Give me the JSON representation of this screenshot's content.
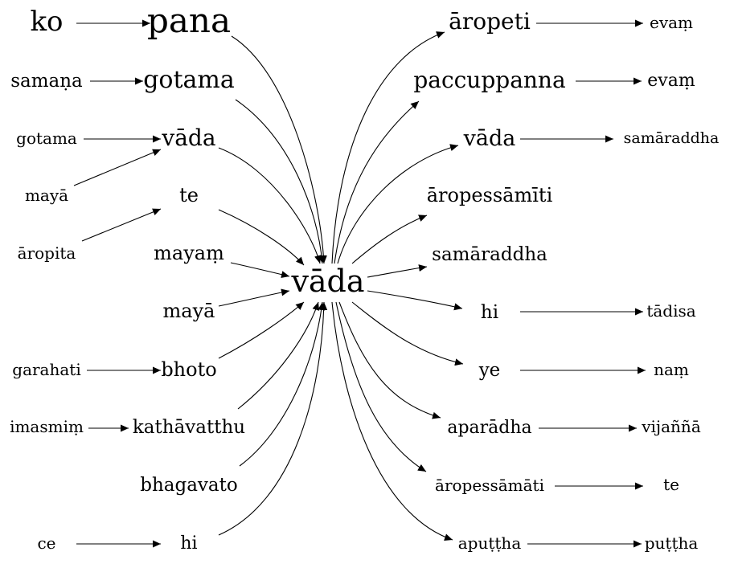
{
  "diagram": {
    "center": {
      "id": "c",
      "label": "vāda"
    },
    "nodes": [
      {
        "id": "ko",
        "label": "ko"
      },
      {
        "id": "pana",
        "label": "pana"
      },
      {
        "id": "samana",
        "label": "samaṇa"
      },
      {
        "id": "gotama1",
        "label": "gotama"
      },
      {
        "id": "gotama2",
        "label": "gotama"
      },
      {
        "id": "vada_l",
        "label": "vāda"
      },
      {
        "id": "maya1",
        "label": "mayā"
      },
      {
        "id": "te_l",
        "label": "te"
      },
      {
        "id": "aropita",
        "label": "āropita"
      },
      {
        "id": "mayam",
        "label": "mayaṃ"
      },
      {
        "id": "maya2",
        "label": "mayā"
      },
      {
        "id": "garahati",
        "label": "garahati"
      },
      {
        "id": "bhoto",
        "label": "bhoto"
      },
      {
        "id": "imasmim",
        "label": "imasmiṃ"
      },
      {
        "id": "kathavatthu",
        "label": "kathāvatthu"
      },
      {
        "id": "bhagavato",
        "label": "bhagavato"
      },
      {
        "id": "ce",
        "label": "ce"
      },
      {
        "id": "hi_l",
        "label": "hi"
      },
      {
        "id": "aropeti",
        "label": "āropeti"
      },
      {
        "id": "evam1",
        "label": "evaṃ"
      },
      {
        "id": "paccuppanna",
        "label": "paccuppanna"
      },
      {
        "id": "evam2",
        "label": "evaṃ"
      },
      {
        "id": "vada_r",
        "label": "vāda"
      },
      {
        "id": "samaraddha1",
        "label": "samāraddha"
      },
      {
        "id": "aropessamiti",
        "label": "āropessāmīti"
      },
      {
        "id": "samaraddha2",
        "label": "samāraddha"
      },
      {
        "id": "hi_r",
        "label": "hi"
      },
      {
        "id": "tadisa",
        "label": "tādisa"
      },
      {
        "id": "ye",
        "label": "ye"
      },
      {
        "id": "nam",
        "label": "naṃ"
      },
      {
        "id": "aparadha",
        "label": "aparādha"
      },
      {
        "id": "vijanna",
        "label": "vijaññā"
      },
      {
        "id": "aropessamati",
        "label": "āropessāmāti"
      },
      {
        "id": "te_r",
        "label": "te"
      },
      {
        "id": "aputtha",
        "label": "apuṭṭha"
      },
      {
        "id": "puttha",
        "label": "puṭṭha"
      }
    ],
    "edges": [
      {
        "from": "ko",
        "to": "pana"
      },
      {
        "from": "samana",
        "to": "gotama1"
      },
      {
        "from": "gotama2",
        "to": "vada_l"
      },
      {
        "from": "maya1",
        "to": "vada_l"
      },
      {
        "from": "aropita",
        "to": "te_l"
      },
      {
        "from": "garahati",
        "to": "bhoto"
      },
      {
        "from": "imasmim",
        "to": "kathavatthu"
      },
      {
        "from": "ce",
        "to": "hi_l"
      },
      {
        "from": "pana",
        "to": "c"
      },
      {
        "from": "gotama1",
        "to": "c"
      },
      {
        "from": "vada_l",
        "to": "c"
      },
      {
        "from": "te_l",
        "to": "c"
      },
      {
        "from": "mayam",
        "to": "c"
      },
      {
        "from": "maya2",
        "to": "c"
      },
      {
        "from": "bhoto",
        "to": "c"
      },
      {
        "from": "kathavatthu",
        "to": "c"
      },
      {
        "from": "bhagavato",
        "to": "c"
      },
      {
        "from": "hi_l",
        "to": "c"
      },
      {
        "from": "c",
        "to": "aropeti"
      },
      {
        "from": "c",
        "to": "paccuppanna"
      },
      {
        "from": "c",
        "to": "vada_r"
      },
      {
        "from": "c",
        "to": "aropessamiti"
      },
      {
        "from": "c",
        "to": "samaraddha2"
      },
      {
        "from": "c",
        "to": "hi_r"
      },
      {
        "from": "c",
        "to": "ye"
      },
      {
        "from": "c",
        "to": "aparadha"
      },
      {
        "from": "c",
        "to": "aropessamati"
      },
      {
        "from": "c",
        "to": "aputtha"
      },
      {
        "from": "aropeti",
        "to": "evam1"
      },
      {
        "from": "paccuppanna",
        "to": "evam2"
      },
      {
        "from": "vada_r",
        "to": "samaraddha1"
      },
      {
        "from": "hi_r",
        "to": "tadisa"
      },
      {
        "from": "ye",
        "to": "nam"
      },
      {
        "from": "aparadha",
        "to": "vijanna"
      },
      {
        "from": "aropessamati",
        "to": "te_r"
      },
      {
        "from": "aputtha",
        "to": "puttha"
      }
    ]
  }
}
